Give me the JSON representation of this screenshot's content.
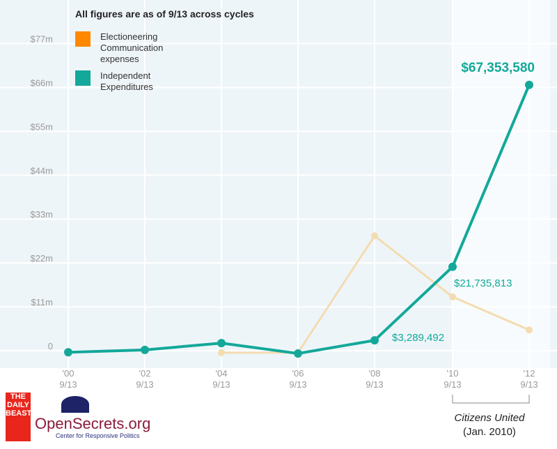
{
  "chart_data": {
    "type": "line",
    "title": "All figures are as of 9/13 across cycles",
    "categories": [
      "'00\n9/13",
      "'02\n9/13",
      "'04\n9/13",
      "'06\n9/13",
      "'08\n9/13",
      "'10\n9/13",
      "'12\n9/13"
    ],
    "x_top": [
      "'00",
      "'02",
      "'04",
      "'06",
      "'08",
      "'10",
      "'12"
    ],
    "x_bottom": [
      "9/13",
      "9/13",
      "9/13",
      "9/13",
      "9/13",
      "9/13",
      "9/13"
    ],
    "yticks": [
      "0",
      "$11m",
      "$22m",
      "$33m",
      "$44m",
      "$55m",
      "$66m",
      "$77m"
    ],
    "ylim": [
      0,
      77
    ],
    "grid": true,
    "legend_position": "top-left",
    "series": [
      {
        "name": "Electioneering Communication expenses",
        "color": "#f5a623",
        "values": [
          null,
          null,
          0.2,
          0.2,
          29.5,
          14.2,
          5.9
        ]
      },
      {
        "name": "Independent Expenditures",
        "color": "#13a89a",
        "values": [
          0.3,
          0.9,
          2.6,
          0,
          3.289492,
          21.735813,
          67.35358
        ]
      }
    ],
    "data_labels": [
      "$3,289,492",
      "$21,735,813",
      "$67,353,580"
    ],
    "annotation": {
      "line1": "Citizens United",
      "line2": "(Jan. 2010)"
    }
  },
  "logos": {
    "daily_beast": "THE DAILY BEAST",
    "opensecrets": "OpenSecrets.org",
    "opensecrets_sub": "Center for Responsive Politics"
  }
}
